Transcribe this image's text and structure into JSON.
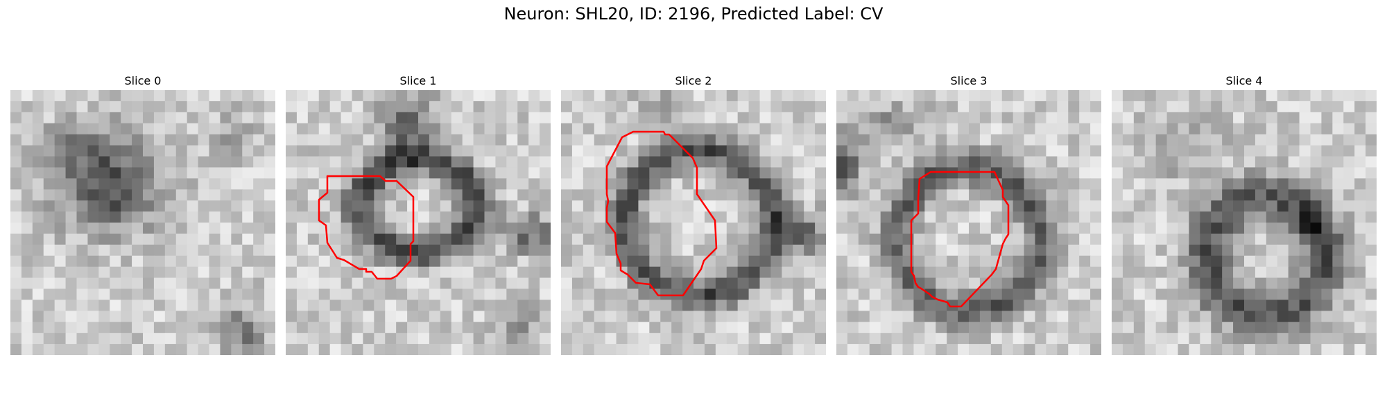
{
  "figure": {
    "title": "Neuron: SHL20, ID: 2196, Predicted Label: CV"
  },
  "panels": [
    {
      "title": "Slice 0",
      "has_contour": false
    },
    {
      "title": "Slice 1",
      "has_contour": true
    },
    {
      "title": "Slice 2",
      "has_contour": true
    },
    {
      "title": "Slice 3",
      "has_contour": true
    },
    {
      "title": "Slice 4",
      "has_contour": false
    }
  ],
  "colors": {
    "contour": "#ff0000",
    "colormap": "grayscale"
  }
}
